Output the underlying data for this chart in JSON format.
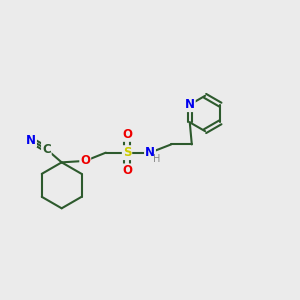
{
  "bg_color": "#ebebeb",
  "bond_color": "#2d5a2d",
  "bond_width": 1.5,
  "atom_colors": {
    "N": "#0000ee",
    "O": "#ee0000",
    "S": "#cccc00",
    "C": "#2d5a2d",
    "H": "#888888"
  },
  "font_size": 8.5,
  "figsize": [
    3.0,
    3.0
  ],
  "dpi": 100
}
